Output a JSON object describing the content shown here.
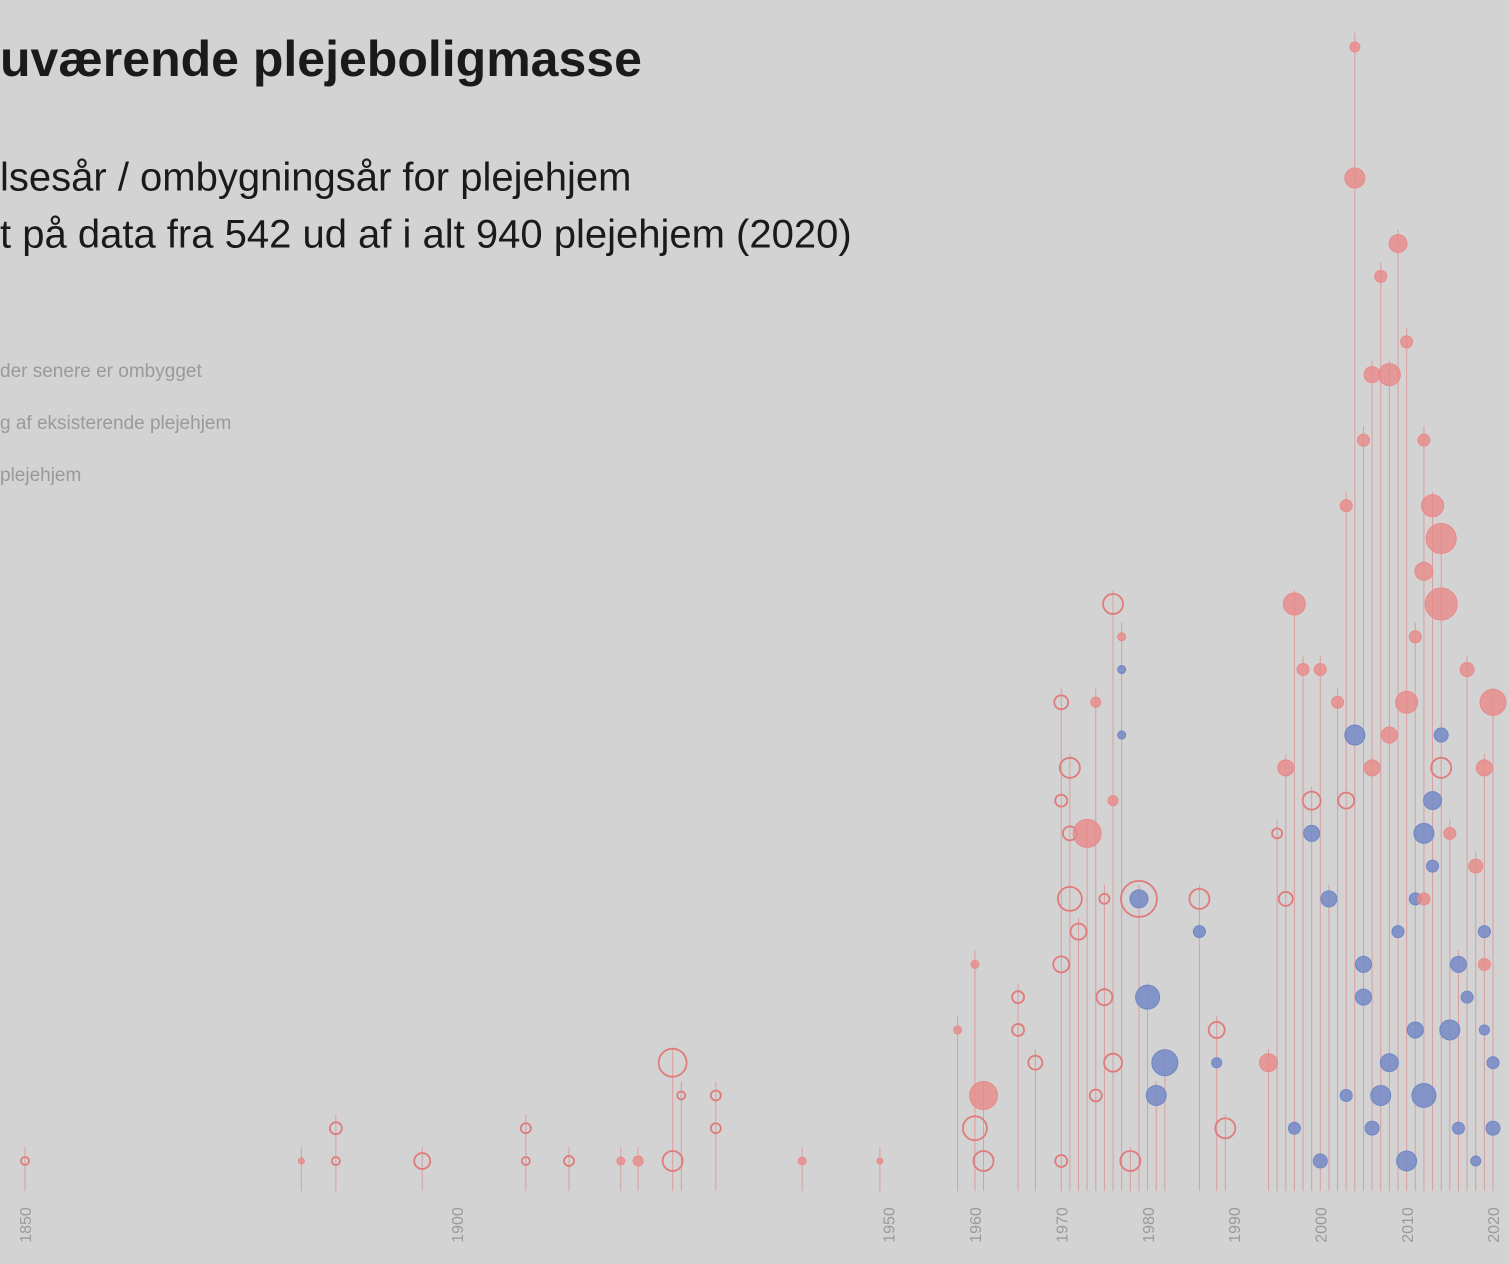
{
  "chart_data": {
    "type": "scatter",
    "title": "uværende plejeboligmasse",
    "subtitle": [
      "lsesår / ombygningsår for plejehjem",
      "t på data fra 542 ud af i alt 940 plejehjem (2020)"
    ],
    "xlim": [
      1850,
      2020
    ],
    "xticks": [
      1850,
      1900,
      1950,
      1960,
      1970,
      1980,
      1990,
      2000,
      2010,
      2020
    ],
    "ylim": [
      0,
      34
    ],
    "series": [
      {
        "name": "der senere er ombygget",
        "color": "#e07b7b",
        "style": "hollow",
        "x": [
          1850,
          1886,
          1886,
          1896,
          1908,
          1908,
          1913,
          1925,
          1925,
          1926,
          1930,
          1930,
          1960,
          1961,
          1965,
          1967,
          1965,
          1970,
          1970,
          1971,
          1970,
          1970,
          1971,
          1971,
          1972,
          1975,
          1976,
          1976,
          1979,
          1986,
          1988,
          1989,
          1995,
          1996,
          1999,
          2003,
          2014,
          1974,
          1975,
          1978
        ],
        "y": [
          0,
          0,
          1,
          0,
          0,
          1,
          0,
          0,
          3,
          2,
          1,
          2,
          1,
          0,
          4,
          3,
          5,
          0,
          6,
          8,
          11,
          14,
          12,
          10,
          7,
          5,
          17,
          3,
          8,
          8,
          4,
          1,
          10,
          8,
          11,
          11,
          12,
          2,
          8,
          0
        ],
        "size": [
          4,
          4,
          6,
          8,
          4,
          5,
          5,
          10,
          14,
          4,
          5,
          5,
          12,
          10,
          6,
          7,
          6,
          6,
          8,
          12,
          6,
          7,
          10,
          7,
          8,
          8,
          10,
          9,
          18,
          10,
          8,
          10,
          5,
          7,
          9,
          8,
          10,
          6,
          5,
          10
        ]
      },
      {
        "name": "g af eksisterende plejehjem",
        "color": "#6f86c6",
        "style": "filled",
        "x": [
          1977,
          1977,
          1979,
          1980,
          1982,
          1981,
          1986,
          1988,
          1997,
          1999,
          2001,
          2004,
          2005,
          2007,
          2008,
          2011,
          2012,
          2012,
          2013,
          2014,
          2015,
          2017,
          2019,
          2020,
          2003,
          2010,
          2005,
          2016,
          2000,
          2018,
          2020,
          2009,
          2016,
          2006,
          2011,
          2013,
          2019
        ],
        "y": [
          15,
          13,
          8,
          5,
          3,
          2,
          7,
          3,
          1,
          10,
          8,
          13,
          5,
          2,
          3,
          4,
          2,
          10,
          11,
          13,
          4,
          5,
          7,
          3,
          2,
          0,
          6,
          6,
          0,
          0,
          1,
          7,
          1,
          1,
          8,
          9,
          4
        ],
        "size": [
          4,
          4,
          9,
          12,
          13,
          10,
          6,
          5,
          6,
          8,
          8,
          10,
          8,
          10,
          9,
          8,
          12,
          10,
          9,
          7,
          10,
          6,
          6,
          6,
          6,
          10,
          8,
          8,
          7,
          5,
          7,
          6,
          6,
          7,
          6,
          6,
          5
        ]
      },
      {
        "name": "plejehjem",
        "color": "#e88a8a",
        "style": "filled",
        "x": [
          1882,
          1921,
          1919,
          1940,
          1949,
          1961,
          1958,
          1960,
          1973,
          1976,
          1974,
          1977,
          1994,
          1996,
          1997,
          1998,
          2004,
          2004,
          2006,
          2008,
          2009,
          2007,
          2010,
          2012,
          2014,
          2014,
          2012,
          2013,
          2010,
          2008,
          2006,
          2019,
          2020,
          2002,
          2000,
          2018,
          2019,
          2017,
          2015,
          2011,
          2003,
          2005,
          2012
        ],
        "y": [
          0,
          0,
          0,
          0,
          0,
          2,
          4,
          6,
          10,
          11,
          14,
          16,
          3,
          12,
          17,
          15,
          34,
          30,
          24,
          24,
          28,
          27,
          25,
          22,
          19,
          17,
          18,
          20,
          14,
          13,
          12,
          12,
          14,
          14,
          15,
          9,
          6,
          15,
          10,
          16,
          20,
          22,
          8
        ],
        "size": [
          3,
          5,
          4,
          4,
          3,
          14,
          4,
          4,
          14,
          5,
          5,
          4,
          9,
          8,
          11,
          6,
          5,
          10,
          8,
          11,
          9,
          6,
          6,
          6,
          15,
          16,
          9,
          11,
          11,
          8,
          8,
          8,
          13,
          6,
          6,
          7,
          6,
          7,
          6,
          6,
          6,
          6,
          6
        ]
      }
    ]
  }
}
